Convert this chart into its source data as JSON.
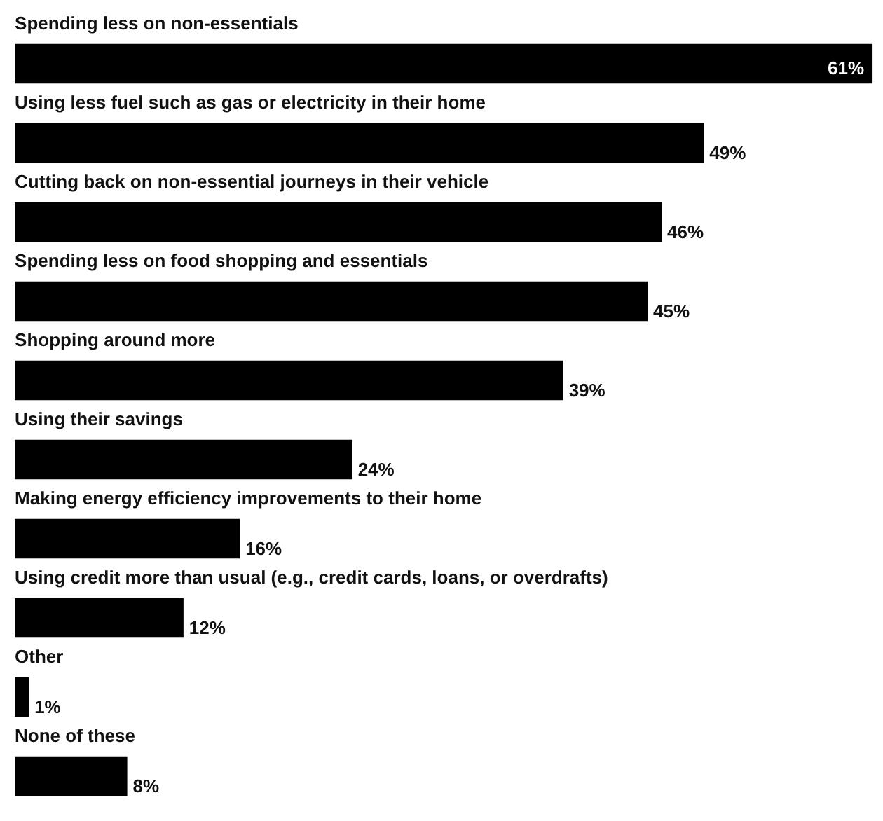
{
  "chart_data": {
    "type": "bar",
    "orientation": "horizontal",
    "categories": [
      "Spending less on non-essentials",
      "Using less fuel such as gas or electricity in their home",
      "Cutting back on non-essential journeys in their vehicle",
      "Spending less on food shopping and essentials",
      "Shopping around more",
      "Using their savings",
      "Making energy efficiency improvements to their home",
      "Using credit more than usual (e.g., credit cards, loans, or overdrafts)",
      "Other",
      "None of these"
    ],
    "values": [
      61,
      49,
      46,
      45,
      39,
      24,
      16,
      12,
      1,
      8
    ],
    "value_labels": [
      "61%",
      "49%",
      "46%",
      "45%",
      "39%",
      "24%",
      "16%",
      "12%",
      "1%",
      "8%"
    ],
    "color": "#000000",
    "grid": false
  }
}
